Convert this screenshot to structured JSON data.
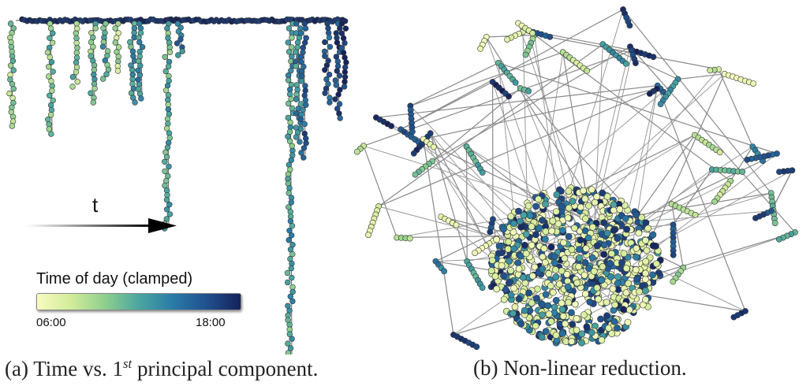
{
  "panel_a": {
    "arrow_label": "t",
    "colorbar": {
      "title": "Time of day (clamped)",
      "min_label": "06:00",
      "max_label": "18:00",
      "colors": [
        "#f7fbc0",
        "#d2ec9a",
        "#8fcf8e",
        "#4aa6a0",
        "#2a7ba6",
        "#21508e",
        "#15225a"
      ]
    },
    "caption": {
      "prefix": "(a)  Time vs. 1",
      "sup": "st",
      "suffix": " principal component."
    }
  },
  "panel_b": {
    "caption": "(b)  Non-linear reduction."
  }
}
